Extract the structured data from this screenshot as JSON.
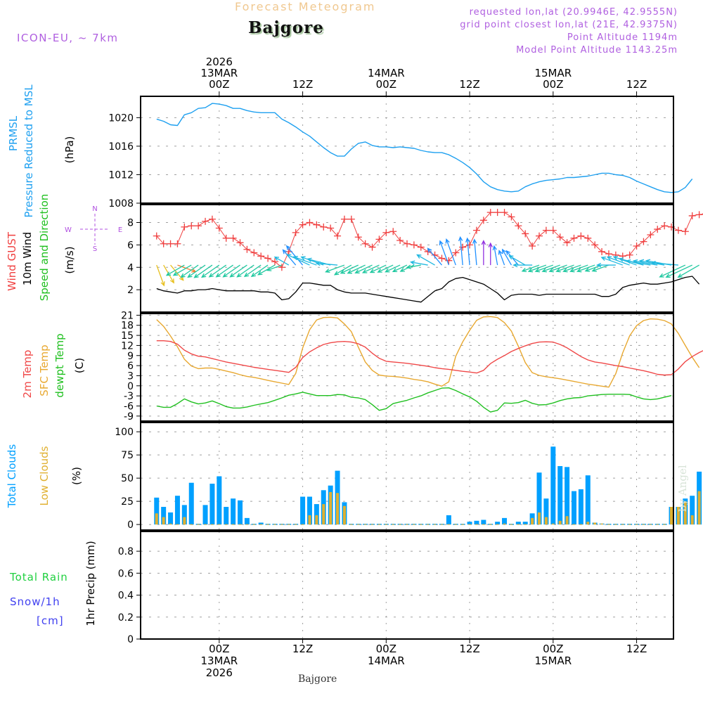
{
  "header": {
    "title": "Forecast Meteogram",
    "location": "Bajgore",
    "model": "ICON-EU, ~ 7km",
    "requested": "requested lon,lat (20.9946E, 42.9555N)",
    "grid_point": "grid point closest lon,lat (21E, 42.9375N)",
    "point_altitude": "Point Altitude 1194m",
    "model_altitude": "Model Point Altitude 1143.25m",
    "footer_location": "Bajgore",
    "credit": "by Angel"
  },
  "colors": {
    "pressure": "#1ea0f0",
    "gust": "#f04040",
    "wind_speed": "#000000",
    "t2m": "#f04848",
    "sfc": "#e8a830",
    "dewpt": "#20c020",
    "total_clouds": "#00a0ff",
    "low_clouds": "#e0b030",
    "compass": "#b050e0",
    "rain": "#20d040",
    "snow": "#4040f0"
  },
  "chart_data": [
    {
      "type": "line",
      "title": "PRMSL Pressure Reduced to MSL",
      "ylabel": "(hPa)",
      "label_lines": [
        "PRMSL",
        "Pressure Reduced to MSL"
      ],
      "unit_label": "(hPa)",
      "ylim": [
        1008,
        1023
      ],
      "yticks": [
        1008,
        1012,
        1016,
        1020
      ],
      "grid": true,
      "x_hours_start": -9,
      "x_step_hours": 1,
      "series": [
        {
          "name": "PRMSL",
          "values": [
            1019.8,
            1019.5,
            1019.0,
            1018.9,
            1020.4,
            1020.7,
            1021.3,
            1021.4,
            1022.0,
            1021.9,
            1021.7,
            1021.3,
            1021.3,
            1021.0,
            1020.8,
            1020.7,
            1020.7,
            1020.7,
            1019.8,
            1019.3,
            1018.7,
            1018.0,
            1017.4,
            1016.6,
            1015.8,
            1015.1,
            1014.6,
            1014.6,
            1015.6,
            1016.4,
            1016.6,
            1016.1,
            1015.9,
            1015.9,
            1015.8,
            1015.9,
            1015.8,
            1015.7,
            1015.4,
            1015.2,
            1015.1,
            1015.1,
            1014.8,
            1014.3,
            1013.7,
            1013.0,
            1012.1,
            1011.0,
            1010.3,
            1009.9,
            1009.7,
            1009.6,
            1009.7,
            1010.3,
            1010.7,
            1011.0,
            1011.2,
            1011.3,
            1011.4,
            1011.6,
            1011.6,
            1011.7,
            1011.8,
            1012.0,
            1012.2,
            1012.2,
            1012.0,
            1011.9,
            1011.6,
            1011.1,
            1010.7,
            1010.3,
            1009.9,
            1009.6,
            1009.5,
            1009.6,
            1010.2,
            1011.4
          ]
        }
      ]
    },
    {
      "type": "line",
      "title": "Wind GUST / 10m Wind Speed and Direction",
      "label_lines": [
        "Wind GUST",
        "10m Wind",
        "Speed and Direction"
      ],
      "unit_label": "(m/s)",
      "compass": {
        "n": "N",
        "s": "S",
        "e": "E",
        "w": "W"
      },
      "ylim": [
        0,
        9.6
      ],
      "yticks": [
        2,
        4,
        6,
        8
      ],
      "grid": true,
      "x_hours_start": -9,
      "x_step_hours": 1,
      "series": [
        {
          "name": "Wind GUST",
          "marker": "+",
          "values": [
            6.8,
            6.1,
            6.1,
            6.1,
            7.6,
            7.7,
            7.7,
            8.1,
            8.3,
            7.5,
            6.6,
            6.6,
            6.2,
            5.6,
            5.3,
            5.0,
            4.8,
            4.5,
            4.0,
            5.4,
            7.1,
            7.8,
            8.0,
            7.8,
            7.6,
            7.5,
            6.8,
            8.3,
            8.3,
            6.7,
            6.1,
            5.8,
            6.5,
            7.1,
            7.2,
            6.4,
            6.1,
            6.0,
            5.8,
            5.4,
            5.1,
            4.8,
            4.6,
            5.3,
            5.8,
            6.0,
            7.3,
            8.2,
            8.9,
            8.9,
            8.9,
            8.5,
            7.7,
            7.0,
            5.9,
            6.8,
            7.3,
            7.3,
            6.7,
            6.2,
            6.6,
            6.8,
            6.6,
            6.0,
            5.4,
            5.2,
            5.1,
            5.0,
            5.1,
            5.9,
            6.3,
            6.9,
            7.4,
            7.7,
            7.6,
            7.3,
            7.2,
            8.6,
            8.7,
            8.8
          ]
        },
        {
          "name": "10m Wind Speed",
          "values": [
            2.1,
            1.9,
            1.8,
            1.7,
            1.9,
            1.9,
            2.0,
            2.0,
            2.1,
            2.0,
            1.9,
            1.9,
            1.9,
            1.9,
            1.9,
            1.8,
            1.8,
            1.7,
            1.1,
            1.2,
            1.8,
            2.6,
            2.6,
            2.5,
            2.4,
            2.4,
            2.0,
            1.8,
            1.7,
            1.7,
            1.7,
            1.6,
            1.5,
            1.4,
            1.3,
            1.2,
            1.1,
            1.0,
            0.9,
            1.4,
            1.9,
            2.1,
            2.7,
            3.0,
            3.1,
            2.9,
            2.7,
            2.5,
            2.1,
            1.7,
            1.1,
            1.5,
            1.6,
            1.6,
            1.6,
            1.5,
            1.6,
            1.6,
            1.6,
            1.6,
            1.6,
            1.6,
            1.6,
            1.6,
            1.4,
            1.4,
            1.6,
            2.2,
            2.4,
            2.5,
            2.6,
            2.5,
            2.5,
            2.6,
            2.7,
            2.9,
            3.1,
            3.2,
            2.5
          ]
        },
        {
          "name": "Wind direction (deg, from)",
          "values": [
            340,
            330,
            320,
            290,
            60,
            60,
            55,
            55,
            55,
            55,
            55,
            55,
            55,
            55,
            55,
            55,
            55,
            60,
            70,
            120,
            140,
            140,
            115,
            110,
            110,
            105,
            95,
            70,
            60,
            65,
            65,
            65,
            65,
            65,
            65,
            65,
            65,
            65,
            80,
            100,
            120,
            140,
            160,
            160,
            175,
            175,
            175,
            180,
            180,
            170,
            160,
            150,
            140,
            120,
            90,
            70,
            70,
            70,
            70,
            70,
            70,
            70,
            70,
            70,
            70,
            70,
            90,
            110,
            110,
            110,
            105,
            100,
            100,
            100,
            100,
            95,
            65,
            65,
            60
          ]
        }
      ]
    },
    {
      "type": "line",
      "title": "2m Temp / SFC Temp / dewpt Temp",
      "label_lines": [
        "2m Temp",
        "SFC Temp",
        "dewpt Temp"
      ],
      "unit_label": "(C)",
      "ylim": [
        -10.5,
        21.5
      ],
      "yticks": [
        -9,
        -6,
        -3,
        0,
        3,
        6,
        9,
        12,
        15,
        18,
        21
      ],
      "grid": true,
      "x_hours_start": -9,
      "x_step_hours": 1,
      "series": [
        {
          "name": "2m Temp",
          "values": [
            13.4,
            13.4,
            13.2,
            12.4,
            10.6,
            9.5,
            8.8,
            8.6,
            8.1,
            7.6,
            7.1,
            6.7,
            6.3,
            5.9,
            5.5,
            5.2,
            4.9,
            4.6,
            4.3,
            4.0,
            5.5,
            8.4,
            10.1,
            11.3,
            12.3,
            12.8,
            13.1,
            13.2,
            13.0,
            12.5,
            11.5,
            9.7,
            8.2,
            7.3,
            7.1,
            6.9,
            6.7,
            6.4,
            6.1,
            5.8,
            5.4,
            5.1,
            4.9,
            4.6,
            4.3,
            4.1,
            3.8,
            4.6,
            6.6,
            7.9,
            9.0,
            10.2,
            11.1,
            11.9,
            12.6,
            13.0,
            13.1,
            13.0,
            12.3,
            11.3,
            10.0,
            8.7,
            7.7,
            7.1,
            6.8,
            6.4,
            6.0,
            5.7,
            5.3,
            4.9,
            4.5,
            4.0,
            3.4,
            3.2,
            3.3,
            5.0,
            7.2,
            8.7,
            9.9,
            10.9,
            11.6,
            11.9,
            12.2,
            12.2,
            11.9,
            10.9,
            9.6,
            8.0
          ]
        },
        {
          "name": "SFC Temp",
          "values": [
            19.7,
            17.7,
            14.8,
            11.6,
            7.9,
            5.9,
            5.1,
            5.3,
            5.3,
            4.9,
            4.4,
            3.9,
            3.3,
            2.8,
            2.5,
            2.1,
            1.6,
            1.2,
            0.8,
            0.4,
            3.7,
            11.3,
            16.7,
            19.6,
            20.3,
            20.4,
            20.2,
            18.4,
            16.1,
            11.5,
            7.1,
            4.6,
            3.2,
            2.9,
            2.8,
            2.6,
            2.3,
            1.9,
            1.6,
            1.2,
            0.5,
            -0.1,
            1.2,
            8.8,
            13.1,
            16.5,
            19.5,
            20.5,
            20.6,
            20.3,
            18.8,
            16.3,
            11.8,
            6.9,
            3.9,
            3.1,
            2.7,
            2.4,
            2.1,
            1.7,
            1.3,
            0.9,
            0.5,
            0.2,
            -0.1,
            -0.4,
            3.6,
            9.8,
            14.9,
            17.9,
            19.4,
            19.9,
            19.8,
            19.4,
            18.4,
            15.6,
            12.0,
            8.5,
            5.4
          ]
        },
        {
          "name": "dewpt Temp",
          "values": [
            -6.0,
            -6.4,
            -6.4,
            -5.3,
            -3.9,
            -4.8,
            -5.4,
            -5.1,
            -4.5,
            -5.3,
            -6.2,
            -6.6,
            -6.6,
            -6.3,
            -5.8,
            -5.4,
            -5.0,
            -4.3,
            -3.6,
            -2.8,
            -2.4,
            -1.9,
            -2.4,
            -2.9,
            -2.9,
            -2.9,
            -2.6,
            -2.7,
            -3.4,
            -3.6,
            -4.1,
            -5.6,
            -7.3,
            -6.8,
            -5.3,
            -4.8,
            -4.3,
            -3.6,
            -3.0,
            -2.1,
            -1.4,
            -0.7,
            -0.6,
            -1.4,
            -2.4,
            -3.3,
            -4.6,
            -6.4,
            -7.8,
            -7.3,
            -5.1,
            -5.2,
            -5.0,
            -4.3,
            -5.2,
            -5.7,
            -5.6,
            -5.1,
            -4.4,
            -3.9,
            -3.6,
            -3.5,
            -3.0,
            -2.8,
            -2.6,
            -2.5,
            -2.5,
            -2.5,
            -2.6,
            -3.3,
            -3.9,
            -4.1,
            -3.9,
            -3.4,
            -2.9
          ]
        }
      ]
    },
    {
      "type": "bar",
      "title": "Total Clouds / Low Clouds",
      "label_lines": [
        "Total Clouds",
        "Low Clouds"
      ],
      "unit_label": "(%)",
      "ylim": [
        -6,
        110
      ],
      "yticks": [
        0,
        25,
        50,
        75,
        100
      ],
      "grid": true,
      "x_hours_start": -9,
      "x_step_hours": 1,
      "series": [
        {
          "name": "Total Clouds",
          "values": [
            29,
            19,
            13,
            31,
            21,
            45,
            0,
            21,
            44,
            52,
            19,
            28,
            26,
            7,
            0,
            2,
            0,
            0,
            0,
            0,
            0,
            30,
            30,
            22,
            37,
            42,
            58,
            24,
            0,
            0,
            0,
            0,
            0,
            0,
            0,
            0,
            0,
            0,
            0,
            0,
            0,
            0,
            10,
            0,
            0,
            3,
            4,
            5,
            0,
            3,
            7,
            0,
            3,
            3,
            12,
            56,
            28,
            84,
            63,
            62,
            36,
            38,
            53,
            2,
            1,
            0,
            0,
            0,
            0,
            0,
            0,
            0,
            0,
            0,
            19,
            19,
            28,
            31,
            57,
            42,
            35,
            20,
            3
          ]
        },
        {
          "name": "Low Clouds",
          "values": [
            12,
            8,
            1,
            0,
            8,
            0,
            0,
            0,
            0,
            0,
            0,
            0,
            0,
            0,
            0,
            0,
            0,
            0,
            0,
            0,
            0,
            0,
            10,
            10,
            22,
            35,
            34,
            20,
            0,
            0,
            0,
            0,
            0,
            0,
            0,
            0,
            0,
            0,
            0,
            0,
            0,
            0,
            0,
            0,
            0,
            0,
            0,
            0,
            0,
            0,
            1,
            0,
            0,
            0,
            7,
            13,
            8,
            1,
            4,
            9,
            0,
            0,
            3,
            2,
            1,
            0,
            0,
            0,
            0,
            0,
            0,
            0,
            0,
            0,
            19,
            19,
            25,
            10,
            36,
            28,
            20,
            19,
            3
          ]
        }
      ]
    },
    {
      "type": "bar",
      "title": "Total Rain / Snow/1h [cm] — 1hr Precip (mm)",
      "label_lines": [
        "Total  Rain",
        "Snow/1h",
        "[cm]"
      ],
      "unit_label": "1hr Precip (mm)",
      "ylim": [
        0,
        0.98
      ],
      "yticks": [
        0,
        0.2,
        0.4,
        0.6,
        0.8
      ],
      "ytick_labels": [
        "0",
        "0.2",
        "0.4",
        "0.6",
        "0.8"
      ],
      "grid": true,
      "series": [
        {
          "name": "Total Rain",
          "values": []
        },
        {
          "name": "Snow/1h",
          "values": []
        }
      ]
    }
  ],
  "time_axis": {
    "top_labels": [
      {
        "hour": 0,
        "lines": [
          "2026",
          "13MAR",
          "00Z"
        ]
      },
      {
        "hour": 12,
        "lines": [
          "12Z"
        ]
      },
      {
        "hour": 24,
        "lines": [
          "14MAR",
          "00Z"
        ]
      },
      {
        "hour": 36,
        "lines": [
          "12Z"
        ]
      },
      {
        "hour": 48,
        "lines": [
          "15MAR",
          "00Z"
        ]
      },
      {
        "hour": 60,
        "lines": [
          "12Z"
        ]
      }
    ],
    "bottom_labels": [
      {
        "hour": 0,
        "lines": [
          "00Z",
          "13MAR",
          "2026"
        ]
      },
      {
        "hour": 12,
        "lines": [
          "12Z"
        ]
      },
      {
        "hour": 24,
        "lines": [
          "00Z",
          "14MAR"
        ]
      },
      {
        "hour": 36,
        "lines": [
          "12Z"
        ]
      },
      {
        "hour": 48,
        "lines": [
          "00Z",
          "15MAR"
        ]
      },
      {
        "hour": 60,
        "lines": [
          "12Z"
        ]
      }
    ],
    "range_hours": [
      -11.3,
      65.3
    ]
  }
}
